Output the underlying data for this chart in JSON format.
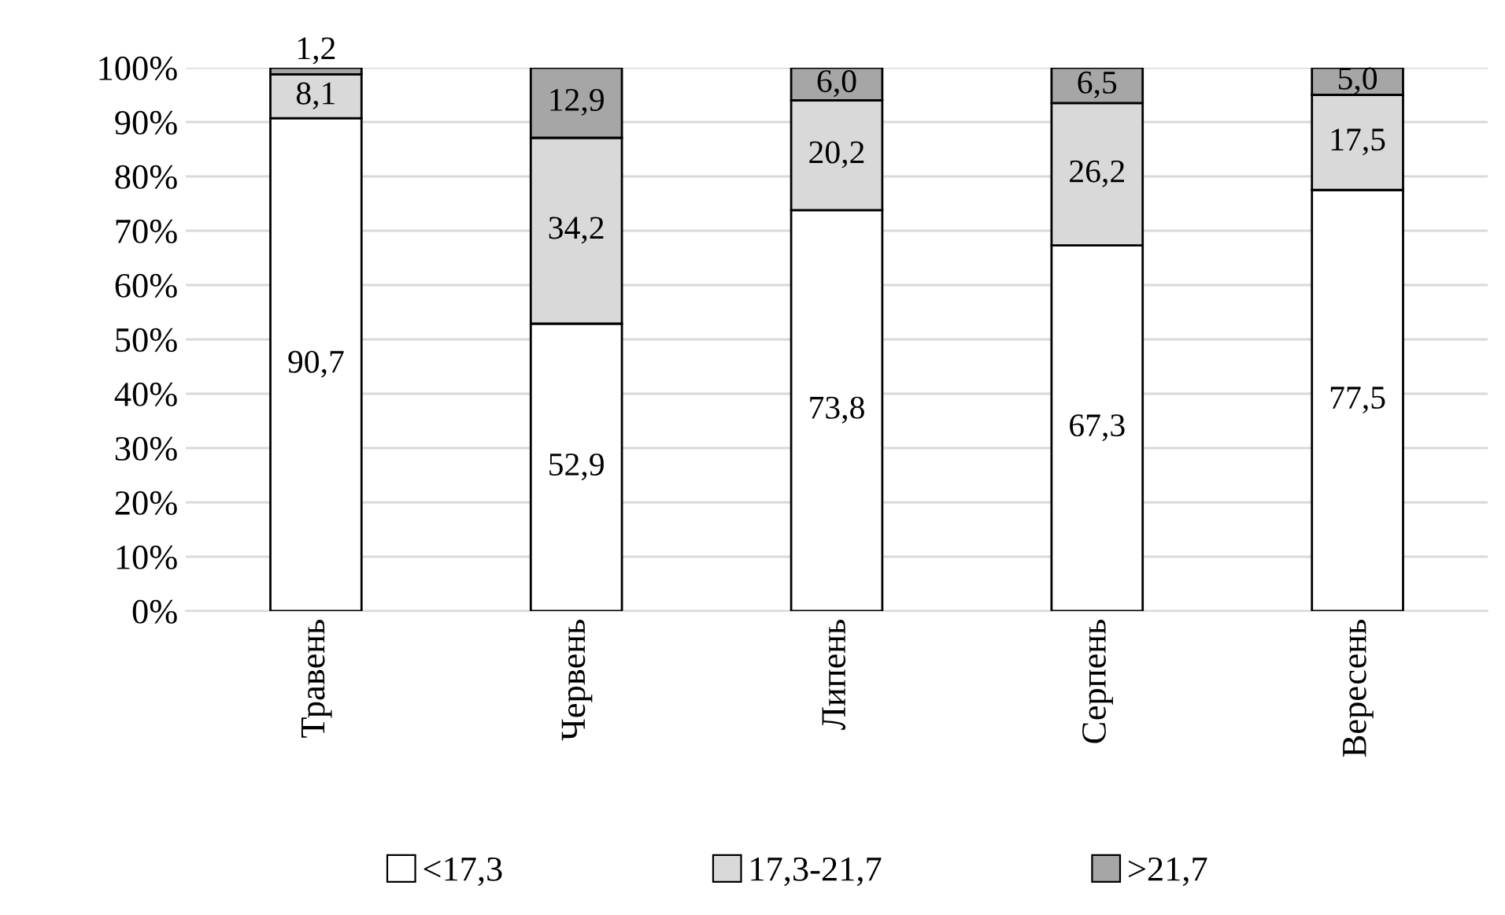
{
  "chart_data": {
    "type": "bar",
    "stacked": true,
    "categories": [
      "Травень",
      "Червень",
      "Липень",
      "Серпень",
      "Вересень"
    ],
    "series": [
      {
        "name": "<17,3",
        "color": "#ffffff",
        "values": [
          90.7,
          52.9,
          73.8,
          67.3,
          77.5
        ],
        "value_labels": [
          "90,7",
          "52,9",
          "73,8",
          "67,3",
          "77,5"
        ]
      },
      {
        "name": "17,3-21,7",
        "color": "#d9d9d9",
        "values": [
          8.1,
          34.2,
          20.2,
          26.2,
          17.5
        ],
        "value_labels": [
          "8,1",
          "34,2",
          "20,2",
          "26,2",
          "17,5"
        ]
      },
      {
        "name": ">21,7",
        "color": "#a6a6a6",
        "values": [
          1.2,
          12.9,
          6.0,
          6.5,
          5.0
        ],
        "value_labels": [
          "1,2",
          "12,9",
          "6,0",
          "6,5",
          "5,0"
        ]
      }
    ],
    "ylim": [
      0,
      100
    ],
    "yticks": [
      {
        "value": 0,
        "label": "0%"
      },
      {
        "value": 10,
        "label": "10%"
      },
      {
        "value": 20,
        "label": "20%"
      },
      {
        "value": 30,
        "label": "30%"
      },
      {
        "value": 40,
        "label": "40%"
      },
      {
        "value": 50,
        "label": "50%"
      },
      {
        "value": 60,
        "label": "60%"
      },
      {
        "value": 70,
        "label": "70%"
      },
      {
        "value": 80,
        "label": "80%"
      },
      {
        "value": 90,
        "label": "90%"
      },
      {
        "value": 100,
        "label": "100%"
      }
    ],
    "grid": "y",
    "legend": "bottom"
  }
}
